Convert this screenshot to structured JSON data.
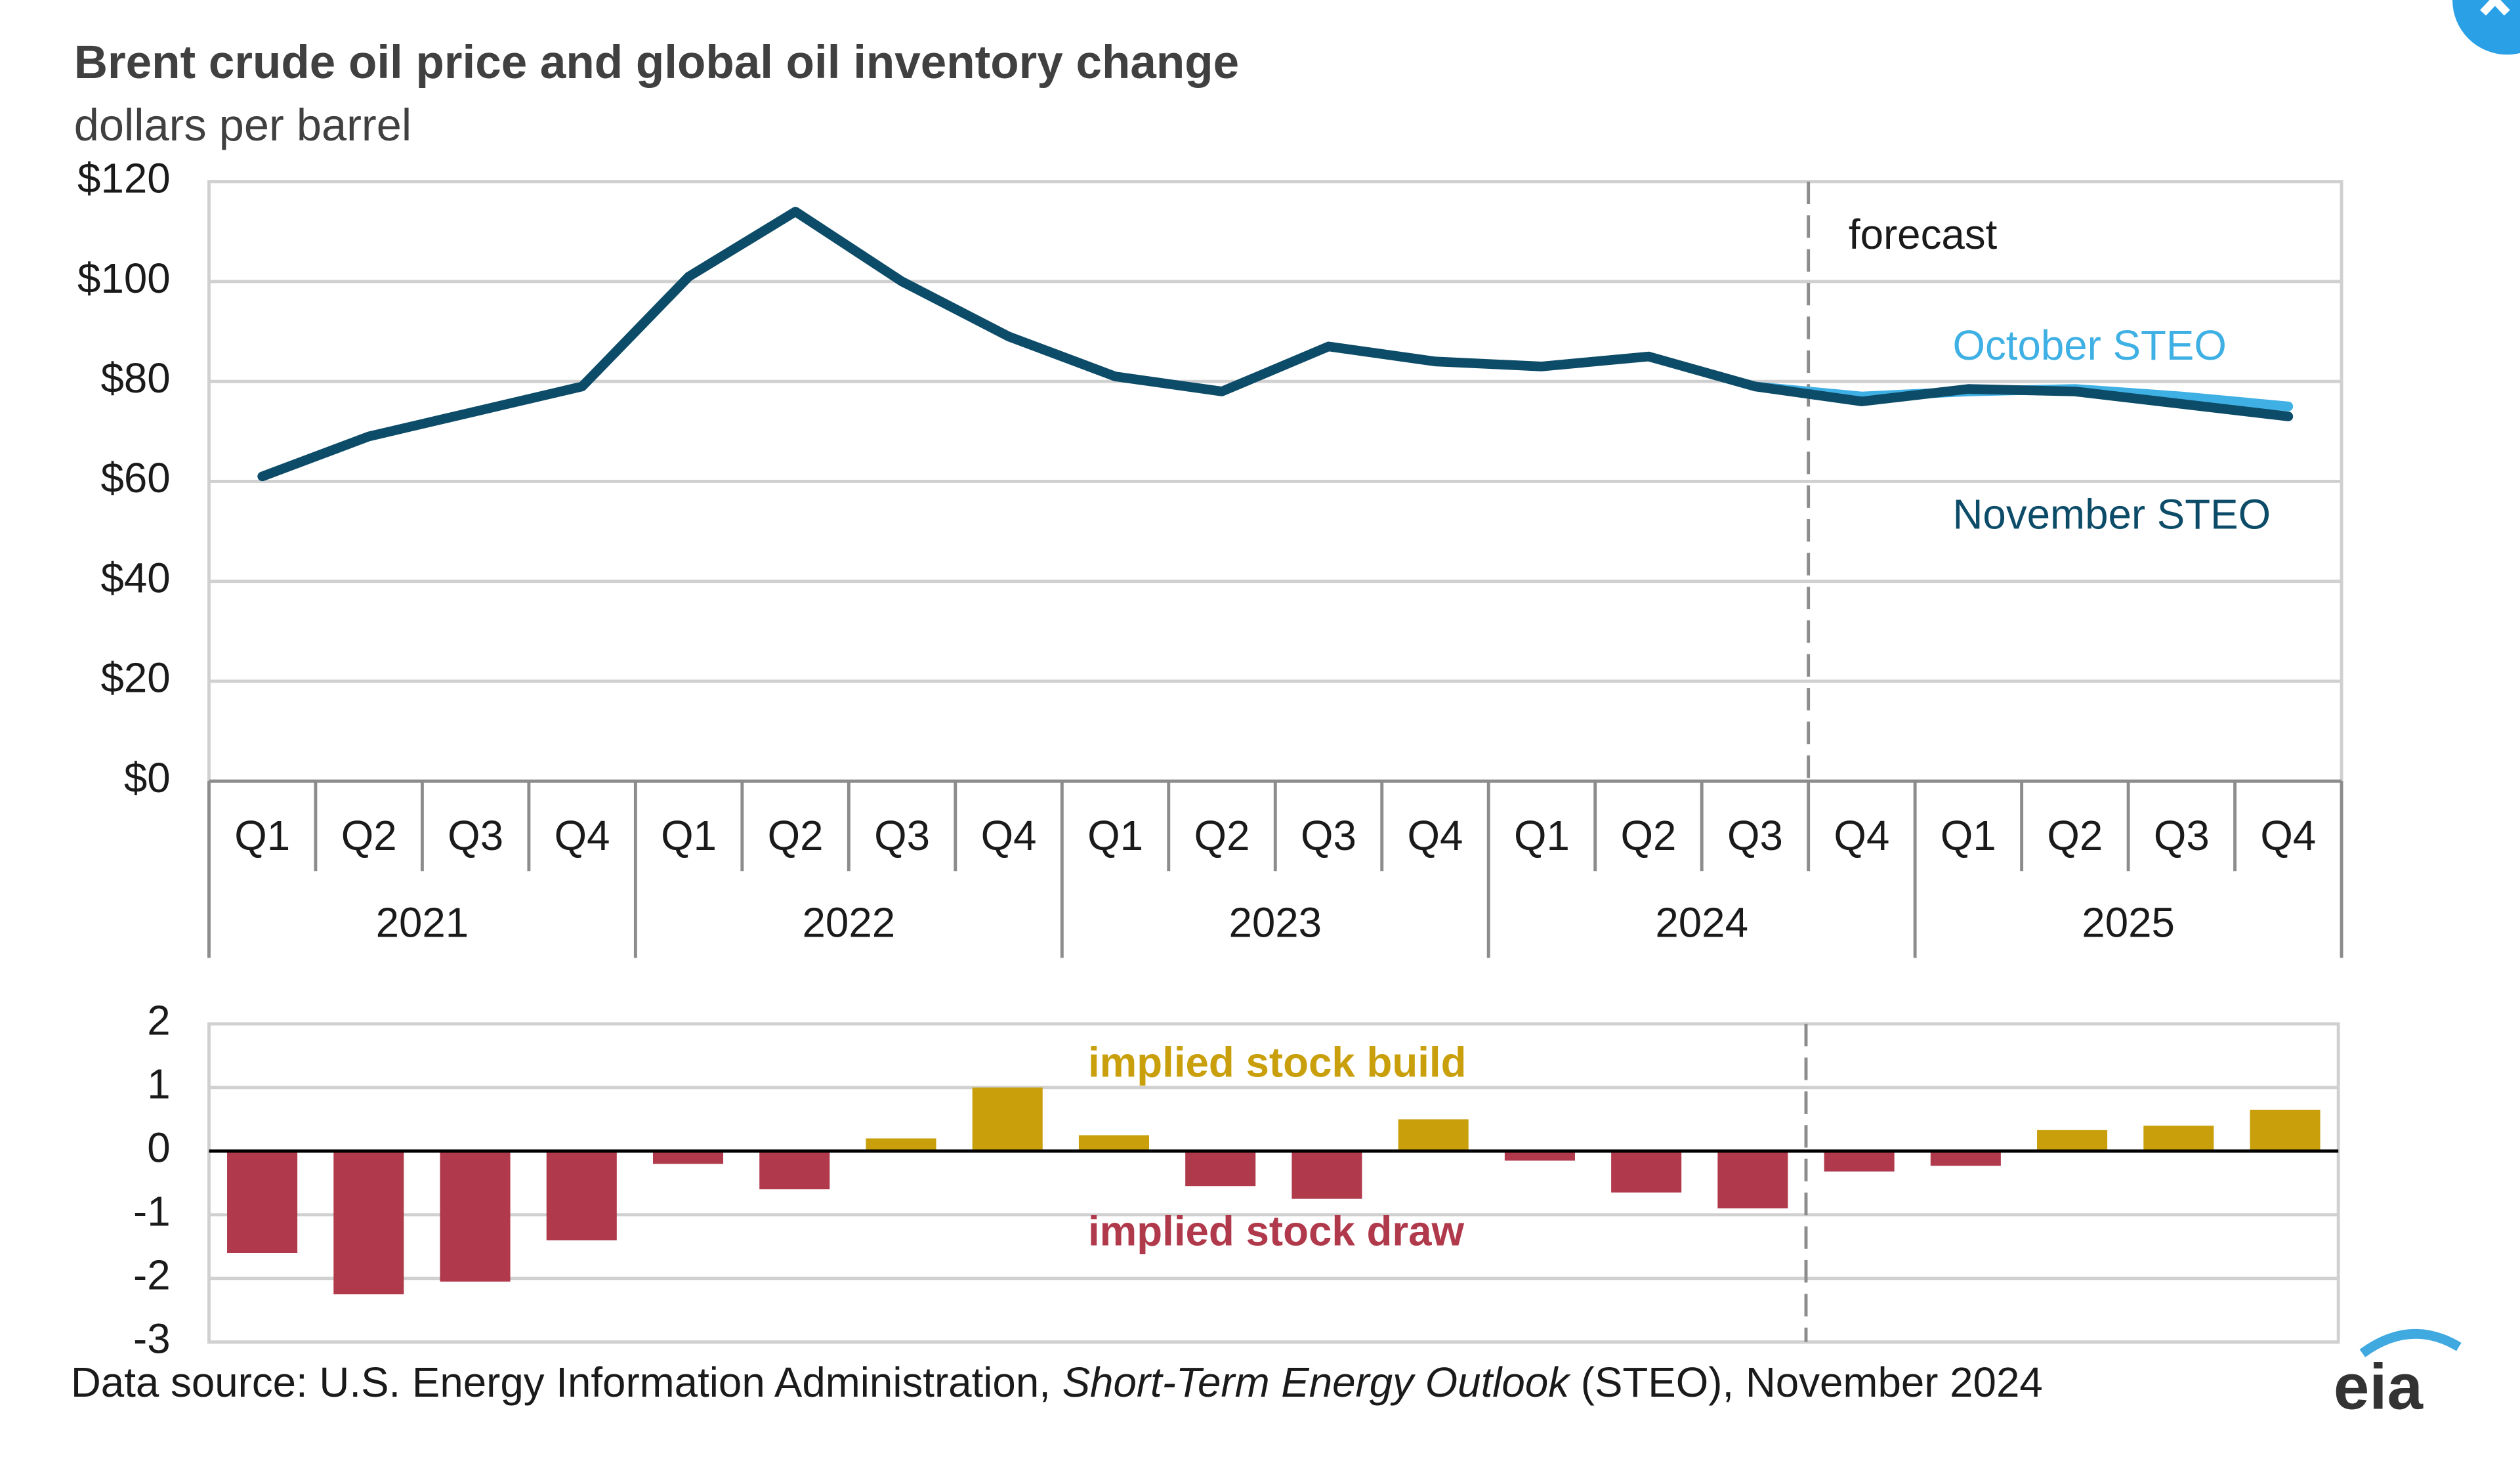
{
  "chart_data": [
    {
      "type": "line",
      "title": "Brent crude oil price and global oil inventory change",
      "subtitle": "dollars per barrel",
      "categories": [
        "Q1",
        "Q2",
        "Q3",
        "Q4",
        "Q1",
        "Q2",
        "Q3",
        "Q4",
        "Q1",
        "Q2",
        "Q3",
        "Q4",
        "Q1",
        "Q2",
        "Q3",
        "Q4",
        "Q1",
        "Q2",
        "Q3",
        "Q4"
      ],
      "category_groups": [
        "2021",
        "2021",
        "2021",
        "2021",
        "2022",
        "2022",
        "2022",
        "2022",
        "2023",
        "2023",
        "2023",
        "2023",
        "2024",
        "2024",
        "2024",
        "2024",
        "2025",
        "2025",
        "2025",
        "2025"
      ],
      "series": [
        {
          "name": "October STEO",
          "color": "#3fb0e4",
          "values": [
            null,
            null,
            null,
            null,
            null,
            null,
            null,
            null,
            null,
            null,
            null,
            null,
            null,
            null,
            79,
            77,
            78,
            78.5,
            77,
            75
          ]
        },
        {
          "name": "November STEO",
          "color": "#0d4c68",
          "values": [
            61,
            69,
            74,
            79,
            101,
            114,
            100,
            89,
            81,
            78,
            87,
            84,
            83,
            85,
            79,
            76,
            78.5,
            78,
            75.5,
            73
          ]
        }
      ],
      "ylim": [
        0,
        120
      ],
      "yticks": [
        {
          "value": 0,
          "label": "$0"
        },
        {
          "value": 20,
          "label": "$20"
        },
        {
          "value": 40,
          "label": "$40"
        },
        {
          "value": 60,
          "label": "$60"
        },
        {
          "value": 80,
          "label": "$80"
        },
        {
          "value": 100,
          "label": "$100"
        },
        {
          "value": 120,
          "label": "$120"
        }
      ],
      "grid": true,
      "annotation": "forecast",
      "forecast_start_index": 15
    },
    {
      "type": "bar",
      "values": [
        -1.6,
        -2.25,
        -2.05,
        -1.4,
        -0.2,
        -0.6,
        0.2,
        1.0,
        0.25,
        -0.55,
        -0.75,
        0.5,
        -0.15,
        -0.65,
        -0.9,
        -0.32,
        -0.23,
        0.33,
        0.4,
        0.65
      ],
      "positive_color": "#c9a00c",
      "negative_color": "#b03a4b",
      "ylim": [
        -3,
        2
      ],
      "yticks": [
        2,
        1,
        0,
        -1,
        -2,
        -3
      ],
      "grid": true,
      "annotations": [
        {
          "text": "implied stock  build",
          "color": "#c9a00c"
        },
        {
          "text": "implied stock draw",
          "color": "#b03a4b"
        }
      ]
    }
  ],
  "source": {
    "lead": "Data source: U.S. Energy Information Administration, ",
    "italic": "Short-Term Energy Outlook",
    "tail": " (STEO), November 2024"
  },
  "logo": "eia"
}
